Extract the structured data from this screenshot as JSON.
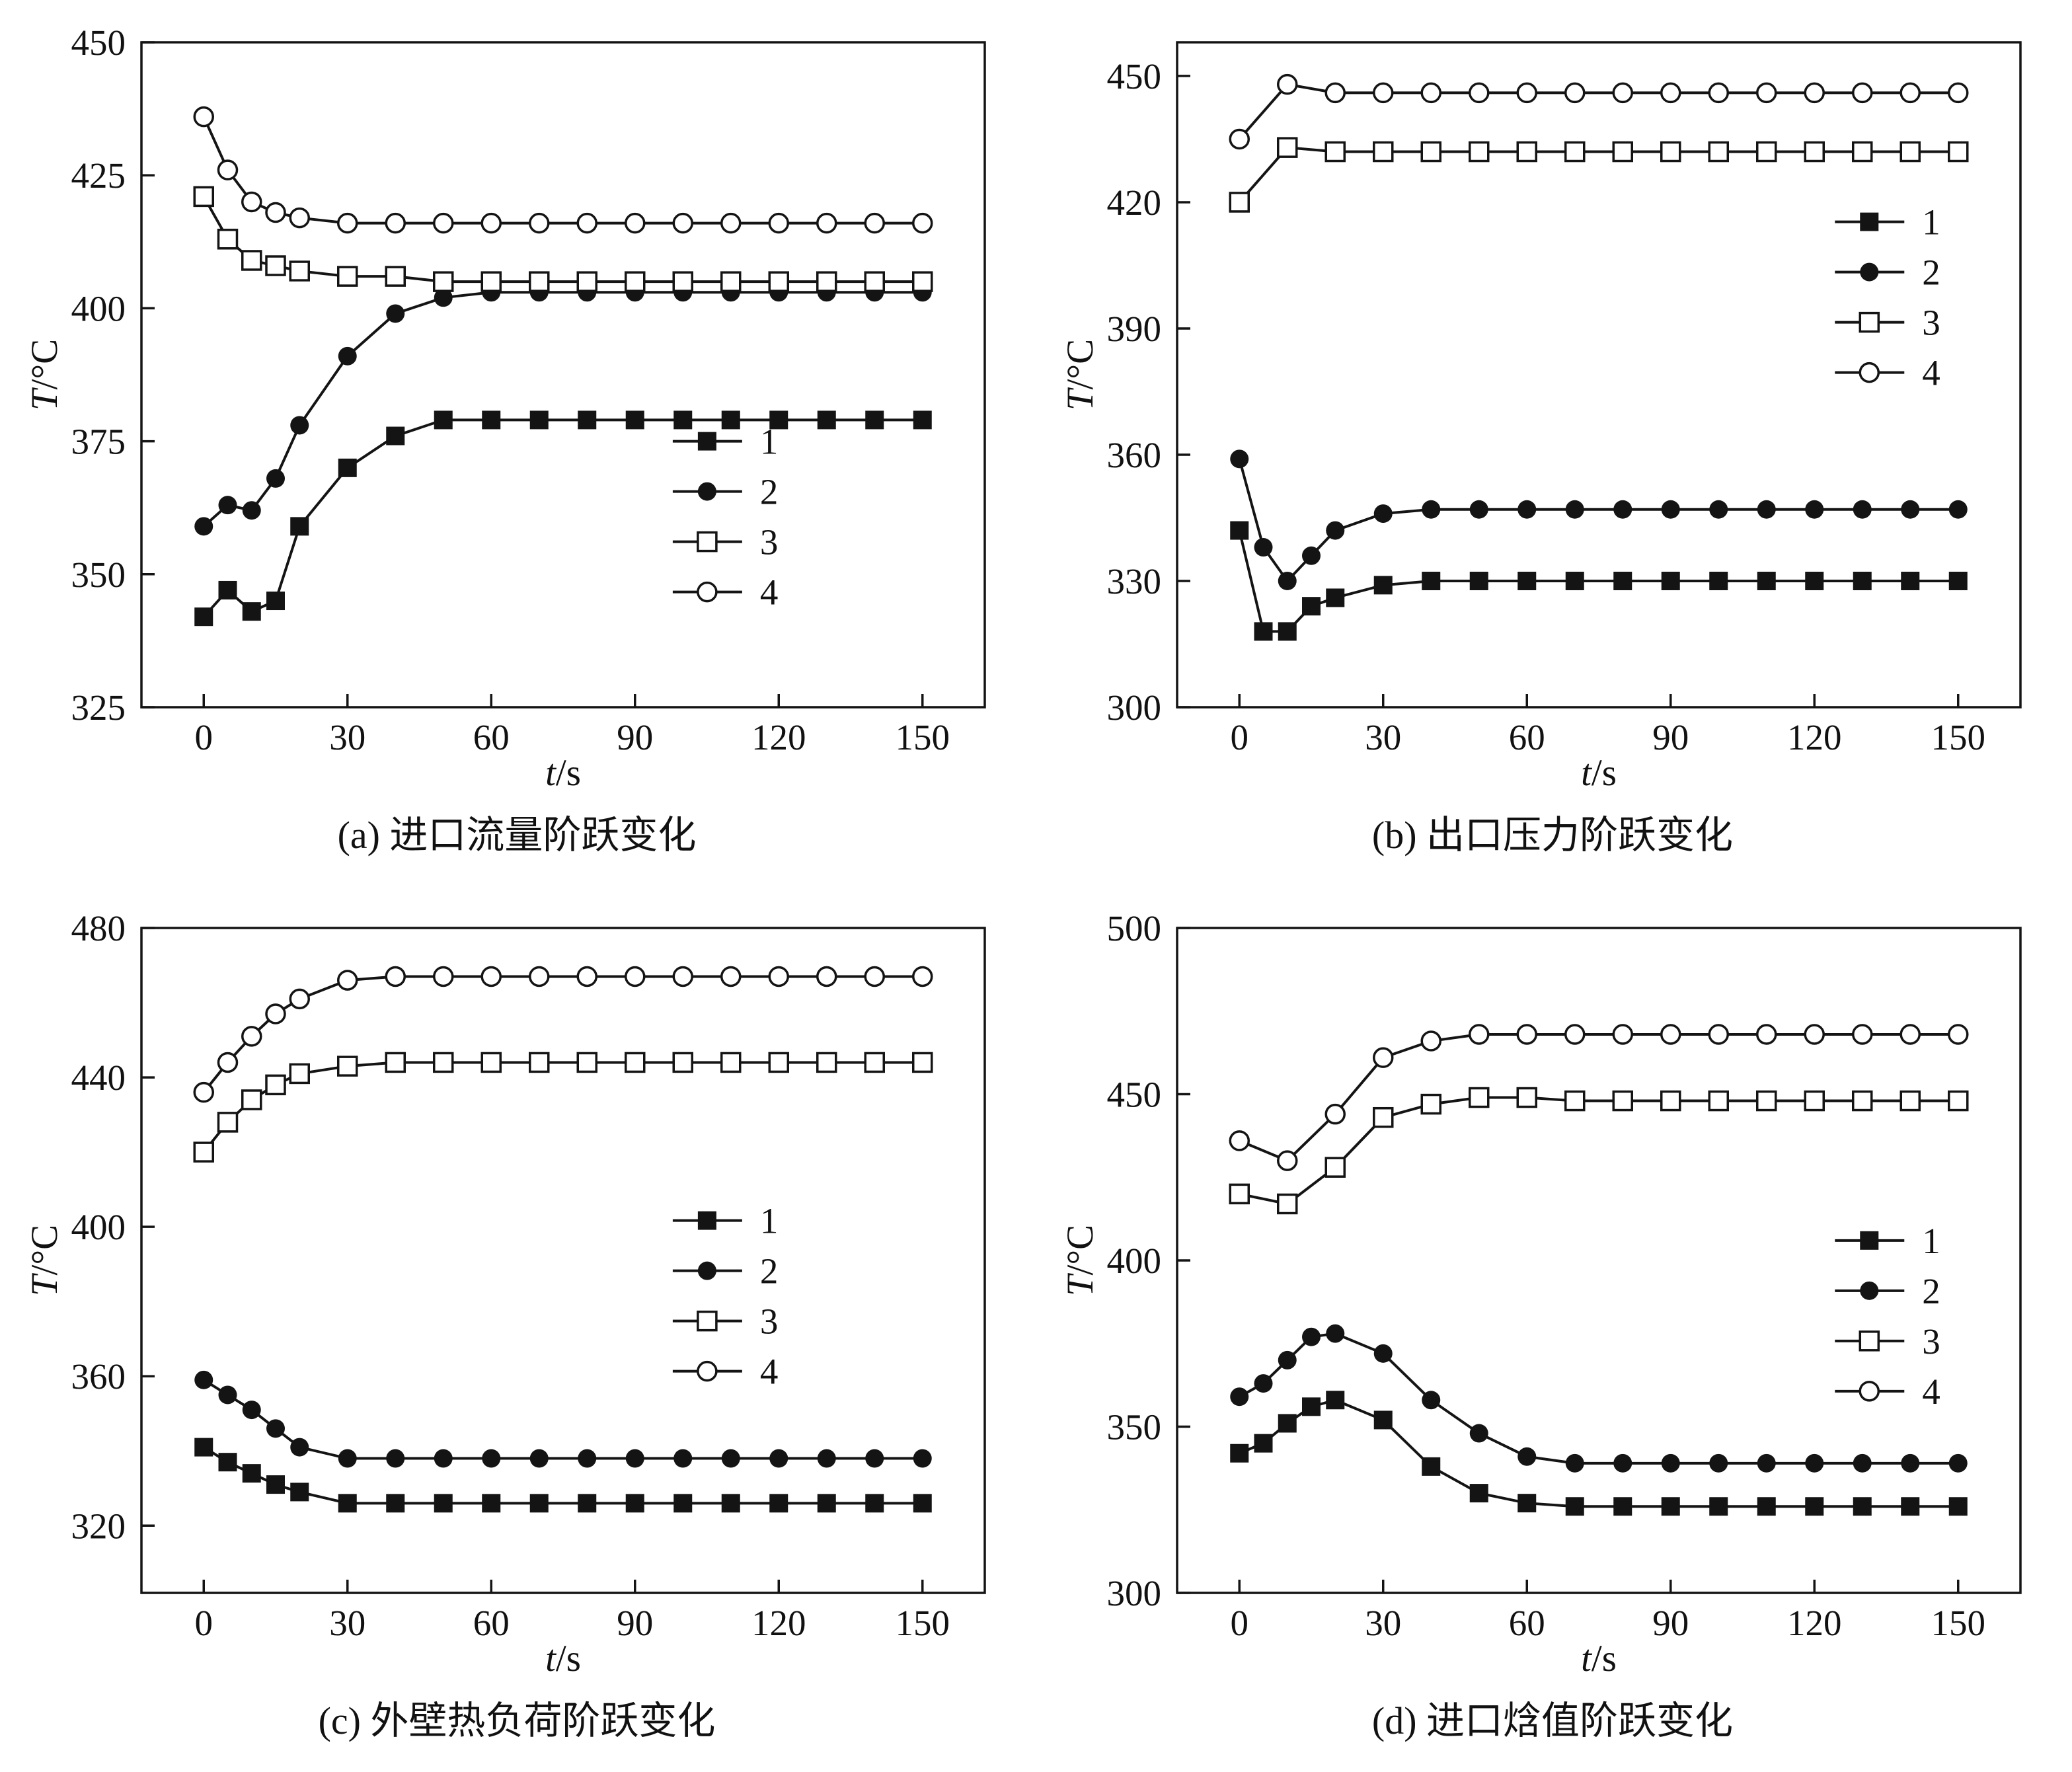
{
  "colors": {
    "line": "#141414",
    "background": "#ffffff"
  },
  "chart_data": [
    {
      "id": "a",
      "type": "line",
      "caption": "(a) 进口流量阶跃变化",
      "xlabel": "t/s",
      "ylabel": "T/°C",
      "xlim": [
        -13,
        163
      ],
      "ylim": [
        325,
        450
      ],
      "xticks": [
        0,
        30,
        60,
        90,
        120,
        150
      ],
      "yticks": [
        325,
        350,
        375,
        400,
        425,
        450
      ],
      "legend": {
        "fx": 0.63,
        "fy": 0.6,
        "labels": [
          "1",
          "2",
          "3",
          "4"
        ]
      },
      "series": [
        {
          "name": "1",
          "marker": "filled-square",
          "x": [
            0,
            5,
            10,
            15,
            20,
            30,
            40,
            50,
            60,
            70,
            80,
            90,
            100,
            110,
            120,
            130,
            140,
            150
          ],
          "y": [
            342,
            347,
            343,
            345,
            359,
            370,
            376,
            379,
            379,
            379,
            379,
            379,
            379,
            379,
            379,
            379,
            379,
            379
          ]
        },
        {
          "name": "2",
          "marker": "filled-circle",
          "x": [
            0,
            5,
            10,
            15,
            20,
            30,
            40,
            50,
            60,
            70,
            80,
            90,
            100,
            110,
            120,
            130,
            140,
            150
          ],
          "y": [
            359,
            363,
            362,
            368,
            378,
            391,
            399,
            402,
            403,
            403,
            403,
            403,
            403,
            403,
            403,
            403,
            403,
            403
          ]
        },
        {
          "name": "3",
          "marker": "open-square",
          "x": [
            0,
            5,
            10,
            15,
            20,
            30,
            40,
            50,
            60,
            70,
            80,
            90,
            100,
            110,
            120,
            130,
            140,
            150
          ],
          "y": [
            421,
            413,
            409,
            408,
            407,
            406,
            406,
            405,
            405,
            405,
            405,
            405,
            405,
            405,
            405,
            405,
            405,
            405
          ]
        },
        {
          "name": "4",
          "marker": "open-circle",
          "x": [
            0,
            5,
            10,
            15,
            20,
            30,
            40,
            50,
            60,
            70,
            80,
            90,
            100,
            110,
            120,
            130,
            140,
            150
          ],
          "y": [
            436,
            426,
            420,
            418,
            417,
            416,
            416,
            416,
            416,
            416,
            416,
            416,
            416,
            416,
            416,
            416,
            416,
            416
          ]
        }
      ]
    },
    {
      "id": "b",
      "type": "line",
      "caption": "(b) 出口压力阶跃变化",
      "xlabel": "t/s",
      "ylabel": "T/°C",
      "xlim": [
        -13,
        163
      ],
      "ylim": [
        300,
        458
      ],
      "xticks": [
        0,
        30,
        60,
        90,
        120,
        150
      ],
      "yticks": [
        300,
        330,
        360,
        390,
        420,
        450
      ],
      "legend": {
        "fx": 0.78,
        "fy": 0.27,
        "labels": [
          "1",
          "2",
          "3",
          "4"
        ]
      },
      "series": [
        {
          "name": "1",
          "marker": "filled-square",
          "x": [
            0,
            5,
            10,
            15,
            20,
            30,
            40,
            50,
            60,
            70,
            80,
            90,
            100,
            110,
            120,
            130,
            140,
            150
          ],
          "y": [
            342,
            318,
            318,
            324,
            326,
            329,
            330,
            330,
            330,
            330,
            330,
            330,
            330,
            330,
            330,
            330,
            330,
            330
          ]
        },
        {
          "name": "2",
          "marker": "filled-circle",
          "x": [
            0,
            5,
            10,
            15,
            20,
            30,
            40,
            50,
            60,
            70,
            80,
            90,
            100,
            110,
            120,
            130,
            140,
            150
          ],
          "y": [
            359,
            338,
            330,
            336,
            342,
            346,
            347,
            347,
            347,
            347,
            347,
            347,
            347,
            347,
            347,
            347,
            347,
            347
          ]
        },
        {
          "name": "3",
          "marker": "open-square",
          "x": [
            0,
            10,
            20,
            30,
            40,
            50,
            60,
            70,
            80,
            90,
            100,
            110,
            120,
            130,
            140,
            150
          ],
          "y": [
            420,
            433,
            432,
            432,
            432,
            432,
            432,
            432,
            432,
            432,
            432,
            432,
            432,
            432,
            432,
            432
          ]
        },
        {
          "name": "4",
          "marker": "open-circle",
          "x": [
            0,
            10,
            20,
            30,
            40,
            50,
            60,
            70,
            80,
            90,
            100,
            110,
            120,
            130,
            140,
            150
          ],
          "y": [
            435,
            448,
            446,
            446,
            446,
            446,
            446,
            446,
            446,
            446,
            446,
            446,
            446,
            446,
            446,
            446
          ]
        }
      ]
    },
    {
      "id": "c",
      "type": "line",
      "caption": "(c) 外壁热负荷阶跃变化",
      "xlabel": "t/s",
      "ylabel": "T/°C",
      "xlim": [
        -13,
        163
      ],
      "ylim": [
        302,
        480
      ],
      "xticks": [
        0,
        30,
        60,
        90,
        120,
        150
      ],
      "yticks": [
        320,
        360,
        400,
        440,
        480
      ],
      "legend": {
        "fx": 0.63,
        "fy": 0.44,
        "labels": [
          "1",
          "2",
          "3",
          "4"
        ]
      },
      "series": [
        {
          "name": "1",
          "marker": "filled-square",
          "x": [
            0,
            5,
            10,
            15,
            20,
            30,
            40,
            50,
            60,
            70,
            80,
            90,
            100,
            110,
            120,
            130,
            140,
            150
          ],
          "y": [
            341,
            337,
            334,
            331,
            329,
            326,
            326,
            326,
            326,
            326,
            326,
            326,
            326,
            326,
            326,
            326,
            326,
            326
          ]
        },
        {
          "name": "2",
          "marker": "filled-circle",
          "x": [
            0,
            5,
            10,
            15,
            20,
            30,
            40,
            50,
            60,
            70,
            80,
            90,
            100,
            110,
            120,
            130,
            140,
            150
          ],
          "y": [
            359,
            355,
            351,
            346,
            341,
            338,
            338,
            338,
            338,
            338,
            338,
            338,
            338,
            338,
            338,
            338,
            338,
            338
          ]
        },
        {
          "name": "3",
          "marker": "open-square",
          "x": [
            0,
            5,
            10,
            15,
            20,
            30,
            40,
            50,
            60,
            70,
            80,
            90,
            100,
            110,
            120,
            130,
            140,
            150
          ],
          "y": [
            420,
            428,
            434,
            438,
            441,
            443,
            444,
            444,
            444,
            444,
            444,
            444,
            444,
            444,
            444,
            444,
            444,
            444
          ]
        },
        {
          "name": "4",
          "marker": "open-circle",
          "x": [
            0,
            5,
            10,
            15,
            20,
            30,
            40,
            50,
            60,
            70,
            80,
            90,
            100,
            110,
            120,
            130,
            140,
            150
          ],
          "y": [
            436,
            444,
            451,
            457,
            461,
            466,
            467,
            467,
            467,
            467,
            467,
            467,
            467,
            467,
            467,
            467,
            467,
            467
          ]
        }
      ]
    },
    {
      "id": "d",
      "type": "line",
      "caption": "(d) 进口焓值阶跃变化",
      "xlabel": "t/s",
      "ylabel": "T/°C",
      "xlim": [
        -13,
        163
      ],
      "ylim": [
        300,
        500
      ],
      "xticks": [
        0,
        30,
        60,
        90,
        120,
        150
      ],
      "yticks": [
        300,
        350,
        400,
        450,
        500
      ],
      "legend": {
        "fx": 0.78,
        "fy": 0.47,
        "labels": [
          "1",
          "2",
          "3",
          "4"
        ]
      },
      "series": [
        {
          "name": "1",
          "marker": "filled-square",
          "x": [
            0,
            5,
            10,
            15,
            20,
            30,
            40,
            50,
            60,
            70,
            80,
            90,
            100,
            110,
            120,
            130,
            140,
            150
          ],
          "y": [
            342,
            345,
            351,
            356,
            358,
            352,
            338,
            330,
            327,
            326,
            326,
            326,
            326,
            326,
            326,
            326,
            326,
            326
          ]
        },
        {
          "name": "2",
          "marker": "filled-circle",
          "x": [
            0,
            5,
            10,
            15,
            20,
            30,
            40,
            50,
            60,
            70,
            80,
            90,
            100,
            110,
            120,
            130,
            140,
            150
          ],
          "y": [
            359,
            363,
            370,
            377,
            378,
            372,
            358,
            348,
            341,
            339,
            339,
            339,
            339,
            339,
            339,
            339,
            339,
            339
          ]
        },
        {
          "name": "3",
          "marker": "open-square",
          "x": [
            0,
            10,
            20,
            30,
            40,
            50,
            60,
            70,
            80,
            90,
            100,
            110,
            120,
            130,
            140,
            150
          ],
          "y": [
            420,
            417,
            428,
            443,
            447,
            449,
            449,
            448,
            448,
            448,
            448,
            448,
            448,
            448,
            448,
            448
          ]
        },
        {
          "name": "4",
          "marker": "open-circle",
          "x": [
            0,
            10,
            20,
            30,
            40,
            50,
            60,
            70,
            80,
            90,
            100,
            110,
            120,
            130,
            140,
            150
          ],
          "y": [
            436,
            430,
            444,
            461,
            466,
            468,
            468,
            468,
            468,
            468,
            468,
            468,
            468,
            468,
            468,
            468
          ]
        }
      ]
    }
  ]
}
